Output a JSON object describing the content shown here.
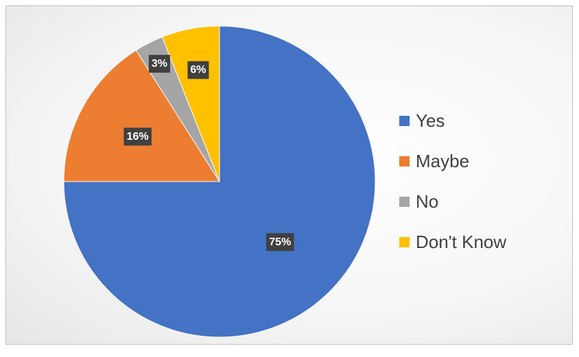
{
  "chart_data": {
    "type": "pie",
    "title": "",
    "categories": [
      "Yes",
      "Maybe",
      "No",
      "Don't Know"
    ],
    "values": [
      75,
      16,
      3,
      6
    ],
    "labels": [
      "75%",
      "16%",
      "3%",
      "6%"
    ],
    "colors": [
      "#4472c4",
      "#ed7d31",
      "#a5a5a5",
      "#ffc000"
    ],
    "legend_position": "right",
    "start_angle": "12 o'clock",
    "direction": "clockwise"
  }
}
